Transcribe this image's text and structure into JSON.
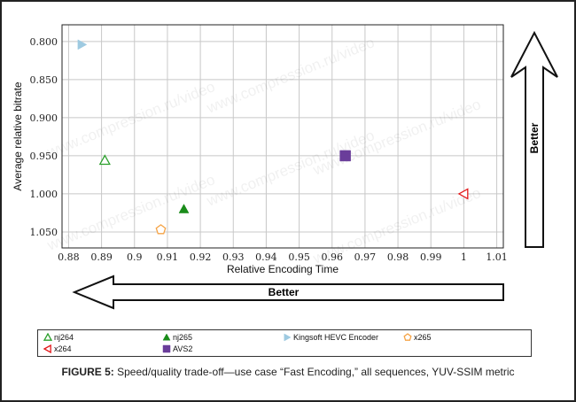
{
  "chart_data": {
    "type": "scatter",
    "title": "",
    "xlabel": "Relative Encoding Time",
    "ylabel": "Average relative bitrate",
    "xlim": [
      0.878,
      1.012
    ],
    "ylim": [
      0.778,
      1.071
    ],
    "y_inverted": true,
    "grid": true,
    "x_ticks": [
      "0.88",
      "0.89",
      "0.9",
      "0.91",
      "0.92",
      "0.93",
      "0.94",
      "0.95",
      "0.96",
      "0.97",
      "0.98",
      "0.99",
      "1",
      "1.01"
    ],
    "y_ticks": [
      "0.800",
      "0.850",
      "0.900",
      "0.950",
      "1.000",
      "1.050"
    ],
    "series": [
      {
        "name": "nj264",
        "marker": "triangle-up-open",
        "color": "#2ca02c",
        "x": [
          0.891
        ],
        "y": [
          0.956
        ]
      },
      {
        "name": "nj265",
        "marker": "triangle-up-filled",
        "color": "#1a8c1a",
        "x": [
          0.915
        ],
        "y": [
          1.02
        ]
      },
      {
        "name": "Kingsoft HEVC Encoder",
        "marker": "triangle-right-filled",
        "color": "#9ecae1",
        "x": [
          0.884
        ],
        "y": [
          0.804
        ]
      },
      {
        "name": "x265",
        "marker": "pentagon-open",
        "color": "#f5a345",
        "x": [
          0.908
        ],
        "y": [
          1.047
        ]
      },
      {
        "name": "x264",
        "marker": "triangle-left-open",
        "color": "#e31a1c",
        "x": [
          1.0
        ],
        "y": [
          1.0
        ]
      },
      {
        "name": "AVS2",
        "marker": "square-filled",
        "color": "#6a3d9a",
        "x": [
          0.964
        ],
        "y": [
          0.95
        ]
      }
    ],
    "legend_position": "bottom",
    "annotations": [
      "Better",
      "Better"
    ],
    "watermark": "www.compression.ru/video"
  },
  "caption": {
    "label": "FIGURE 5:",
    "text": " Speed/quality trade-off—use case “Fast Encoding,” all sequences, YUV-SSIM metric"
  }
}
